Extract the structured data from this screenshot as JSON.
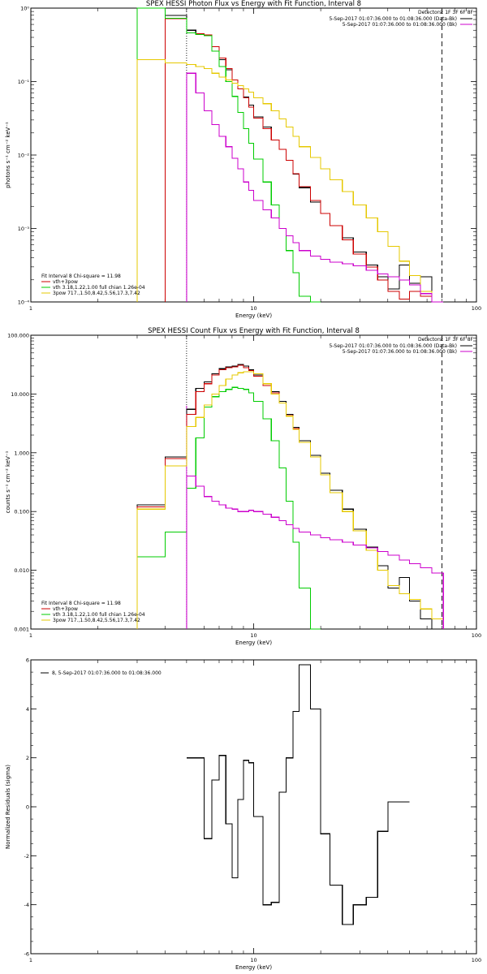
{
  "chart_data": [
    {
      "type": "line",
      "title": "SPEX HESSI Photon Flux vs Energy with Fit Function, Interval 8",
      "xlabel": "Energy (keV)",
      "ylabel": "photons s⁻¹ cm⁻² keV⁻¹",
      "xscale": "log",
      "yscale": "log",
      "xlim": [
        1,
        100
      ],
      "ylim": [
        0.0001,
        1
      ],
      "x_ticks": [
        {
          "v": 1,
          "label": "1"
        },
        {
          "v": 10,
          "label": "10"
        },
        {
          "v": 100,
          "label": "100"
        }
      ],
      "y_ticks": [
        {
          "v": 0.0001,
          "label": "10⁻⁴"
        },
        {
          "v": 0.001,
          "label": "10⁻³"
        },
        {
          "v": 0.01,
          "label": "10⁻²"
        },
        {
          "v": 0.1,
          "label": "10⁻¹"
        },
        {
          "v": 1,
          "label": "10⁰"
        }
      ],
      "header": {
        "detectors": "Detectors: 1F 3F 6F 8F",
        "lines": [
          {
            "text": "5-Sep-2017 01:07:36.000 to 01:08:36.000 (Data-Bk)",
            "color": "#000000"
          },
          {
            "text": "5-Sep-2017 01:07:36.000 to 01:08:36.000 (Bk)",
            "color": "#cc00cc"
          }
        ]
      },
      "fit_info": {
        "title": "Fit Interval 8   Chi-square = 11.98",
        "lines": [
          {
            "text": "vth+3pow",
            "color": "#cc0000"
          },
          {
            "text": "vth 3.18,1.22,1.00  full chian 1.26e-04",
            "color": "#00cc00"
          },
          {
            "text": "3pow 717.,1.50,8.42,5.56,17.3,7.42",
            "color": "#e6c800"
          }
        ]
      },
      "vlines": [
        {
          "x": 5.0,
          "style": "dotted",
          "color": "#000000"
        },
        {
          "x": 5.0,
          "style": "solid",
          "color": "#cc00cc"
        },
        {
          "x": 70.0,
          "style": "dashed",
          "color": "#000000"
        }
      ],
      "edges": [
        3,
        4,
        5,
        5.5,
        6,
        6.5,
        7,
        7.5,
        8,
        8.5,
        9,
        9.5,
        10,
        11,
        12,
        13,
        14,
        15,
        16,
        18,
        20,
        22,
        25,
        28,
        32,
        36,
        40,
        45,
        50,
        56,
        63,
        71
      ],
      "series": [
        {
          "name": "Data-Bk",
          "color": "#000000",
          "start": 0,
          "values": [
            null,
            0.8,
            0.5,
            0.44,
            0.43,
            0.3,
            0.2,
            0.145,
            0.105,
            0.08,
            0.062,
            0.048,
            0.033,
            0.024,
            0.016,
            0.012,
            0.0085,
            0.0055,
            0.0036,
            0.0023,
            0.0016,
            0.0011,
            0.00075,
            0.00048,
            0.00032,
            0.00022,
            0.00015,
            0.00032,
            0.00018,
            0.00022,
            0.0001
          ]
        },
        {
          "name": "vth+3pow",
          "color": "#cc0000",
          "start": 0,
          "values": [
            null,
            0.72,
            0.46,
            0.45,
            0.43,
            0.3,
            0.21,
            0.15,
            0.105,
            0.08,
            0.06,
            0.045,
            0.032,
            0.023,
            0.016,
            0.012,
            0.0085,
            0.0056,
            0.0037,
            0.0024,
            0.0016,
            0.0011,
            0.0007,
            0.00045,
            0.0003,
            0.0002,
            0.00014,
            0.00011,
            0.00014,
            0.00012,
            0.0001
          ]
        },
        {
          "name": "vth",
          "color": "#00cc00",
          "start": 0,
          "values": [
            1.0,
            0.73,
            0.46,
            0.44,
            0.42,
            0.26,
            0.16,
            0.1,
            0.063,
            0.038,
            0.023,
            0.0145,
            0.0088,
            0.0043,
            0.0021,
            0.001,
            0.0005,
            0.00025,
            0.00012,
            5e-05,
            null,
            null,
            null,
            null,
            null,
            null,
            null,
            null,
            null,
            null,
            null
          ]
        },
        {
          "name": "3pow",
          "color": "#e6c800",
          "start": 0,
          "values": [
            0.2,
            0.18,
            0.17,
            0.16,
            0.15,
            0.13,
            0.115,
            0.105,
            0.095,
            0.088,
            0.08,
            0.072,
            0.06,
            0.05,
            0.04,
            0.031,
            0.024,
            0.018,
            0.013,
            0.0093,
            0.0065,
            0.0046,
            0.0032,
            0.0021,
            0.0014,
            0.0009,
            0.00057,
            0.00036,
            0.00023,
            0.00014,
            0.0001
          ]
        },
        {
          "name": "Bk",
          "color": "#cc00cc",
          "start": 2,
          "values": [
            0.13,
            0.07,
            0.04,
            0.026,
            0.018,
            0.013,
            0.009,
            0.0065,
            0.0043,
            0.0033,
            0.0024,
            0.0018,
            0.0014,
            0.001,
            0.0008,
            0.00064,
            0.0005,
            0.00042,
            0.00038,
            0.00035,
            0.00033,
            0.00031,
            0.00027,
            0.00024,
            0.00022,
            0.0002,
            0.00017,
            0.00013,
            0.0001
          ]
        }
      ]
    },
    {
      "type": "line",
      "title": "SPEX HESSI Count Flux vs Energy with Fit Function, Interval 8",
      "xlabel": "Energy (keV)",
      "ylabel": "counts s⁻¹ cm⁻² keV⁻¹",
      "xscale": "log",
      "yscale": "log",
      "xlim": [
        1,
        100
      ],
      "ylim": [
        0.001,
        100
      ],
      "x_ticks": [
        {
          "v": 1,
          "label": "1"
        },
        {
          "v": 10,
          "label": "10"
        },
        {
          "v": 100,
          "label": "100"
        }
      ],
      "y_ticks": [
        {
          "v": 0.001,
          "label": "0.001"
        },
        {
          "v": 0.01,
          "label": "0.010"
        },
        {
          "v": 0.1,
          "label": "0.100"
        },
        {
          "v": 1,
          "label": "1.000"
        },
        {
          "v": 10,
          "label": "10.000"
        },
        {
          "v": 100,
          "label": "100.000"
        }
      ],
      "header": {
        "detectors": "Detectors: 1F 3F 6F 8F",
        "lines": [
          {
            "text": "5-Sep-2017 01:07:36.000 to 01:08:36.000 (Data-Bk)",
            "color": "#000000"
          },
          {
            "text": "5-Sep-2017 01:07:36.000 to 01:08:36.000 (Bk)",
            "color": "#cc00cc"
          }
        ]
      },
      "fit_info": {
        "title": "Fit Interval 8   Chi-square = 11.98",
        "lines": [
          {
            "text": "vth+3pow",
            "color": "#cc0000"
          },
          {
            "text": "vth 3.18,1.22,1.00  full chian 1.26e-04",
            "color": "#00cc00"
          },
          {
            "text": "3pow 717.,1.50,8.42,5.56,17.3,7.42",
            "color": "#e6c800"
          }
        ]
      },
      "vlines": [
        {
          "x": 5.0,
          "style": "dotted",
          "color": "#000000"
        },
        {
          "x": 5.0,
          "style": "solid",
          "color": "#cc00cc"
        },
        {
          "x": 70.0,
          "style": "dashed",
          "color": "#000000"
        }
      ],
      "edges": [
        3,
        4,
        5,
        5.5,
        6,
        6.5,
        7,
        7.5,
        8,
        8.5,
        9,
        9.5,
        10,
        11,
        12,
        13,
        14,
        15,
        16,
        18,
        20,
        22,
        25,
        28,
        32,
        36,
        40,
        45,
        50,
        56,
        63,
        71
      ],
      "series": [
        {
          "name": "Data-Bk",
          "color": "#000000",
          "start": 0,
          "values": [
            0.13,
            0.85,
            5.5,
            12.5,
            16,
            22,
            27,
            29,
            30,
            32,
            30,
            26,
            21,
            15,
            11,
            7.5,
            4.5,
            2.7,
            1.6,
            0.9,
            0.45,
            0.23,
            0.11,
            0.05,
            0.025,
            0.012,
            0.005,
            0.0075,
            0.003,
            0.0015,
            0.001
          ]
        },
        {
          "name": "vth+3pow",
          "color": "#cc0000",
          "start": 0,
          "values": [
            0.12,
            0.8,
            4.5,
            11,
            15,
            21,
            26,
            28,
            29,
            31,
            28,
            25,
            20,
            14,
            10.5,
            7,
            4.3,
            2.6,
            1.5,
            0.85,
            0.42,
            0.21,
            0.1,
            0.047,
            0.022,
            0.01,
            0.0055,
            0.004,
            0.0032,
            0.0022,
            0.0015
          ]
        },
        {
          "name": "vth",
          "color": "#00cc00",
          "start": 0,
          "values": [
            0.017,
            0.045,
            0.25,
            1.8,
            6,
            9,
            11,
            12,
            13,
            12.5,
            12,
            10.5,
            7.5,
            3.8,
            1.6,
            0.55,
            0.15,
            0.03,
            0.005,
            0.001,
            null,
            null,
            null,
            null,
            null,
            null,
            null,
            null,
            null,
            null,
            null
          ]
        },
        {
          "name": "3pow",
          "color": "#e6c800",
          "start": 0,
          "values": [
            0.11,
            0.6,
            2.8,
            4,
            6.5,
            10,
            14,
            18,
            21,
            23,
            24,
            24,
            22,
            15,
            10,
            7,
            4.2,
            2.5,
            1.5,
            0.85,
            0.42,
            0.21,
            0.1,
            0.047,
            0.022,
            0.01,
            0.0055,
            0.004,
            0.0032,
            0.0022,
            0.0015
          ]
        },
        {
          "name": "Bk",
          "color": "#cc00cc",
          "start": 2,
          "values": [
            0.4,
            0.27,
            0.18,
            0.15,
            0.13,
            0.115,
            0.11,
            0.1,
            0.1,
            0.105,
            0.1,
            0.09,
            0.08,
            0.07,
            0.06,
            0.052,
            0.045,
            0.04,
            0.036,
            0.033,
            0.03,
            0.027,
            0.024,
            0.021,
            0.018,
            0.015,
            0.013,
            0.011,
            0.009
          ]
        }
      ]
    },
    {
      "type": "line",
      "title": "",
      "xlabel": "Energy (keV)",
      "ylabel": "Normalized Residuals (sigma)",
      "xscale": "log",
      "yscale": "linear",
      "xlim": [
        1,
        100
      ],
      "ylim": [
        -6,
        6
      ],
      "x_ticks": [
        {
          "v": 1,
          "label": "1"
        },
        {
          "v": 10,
          "label": "10"
        },
        {
          "v": 100,
          "label": "100"
        }
      ],
      "y_ticks": [
        {
          "v": -6,
          "label": "-6"
        },
        {
          "v": -4,
          "label": "-4"
        },
        {
          "v": -2,
          "label": "-2"
        },
        {
          "v": 0,
          "label": "0"
        },
        {
          "v": 2,
          "label": "2"
        },
        {
          "v": 4,
          "label": "4"
        },
        {
          "v": 6,
          "label": "6"
        }
      ],
      "legend": {
        "text": "8,  5-Sep-2017 01:07:36.000 to 01:08:36.000",
        "color": "#000000"
      },
      "edges": [
        5,
        5.5,
        6,
        6.5,
        7,
        7.5,
        8,
        8.5,
        9,
        9.5,
        10,
        11,
        12,
        13,
        14,
        15,
        16,
        18,
        20,
        22,
        25,
        28,
        32,
        36,
        40,
        45,
        50,
        56,
        63,
        71
      ],
      "series": [
        {
          "name": "8",
          "color": "#000000",
          "start": 0,
          "values": [
            2.0,
            2.0,
            -1.3,
            1.1,
            2.1,
            -0.7,
            -2.9,
            0.3,
            1.9,
            1.8,
            -0.4,
            -4.0,
            -3.9,
            0.6,
            2.0,
            3.9,
            5.8,
            4.0,
            -1.1,
            -3.2,
            -4.8,
            -4.0,
            -3.7,
            -1.0,
            0.2,
            0.2,
            null,
            null,
            null
          ]
        }
      ]
    }
  ]
}
